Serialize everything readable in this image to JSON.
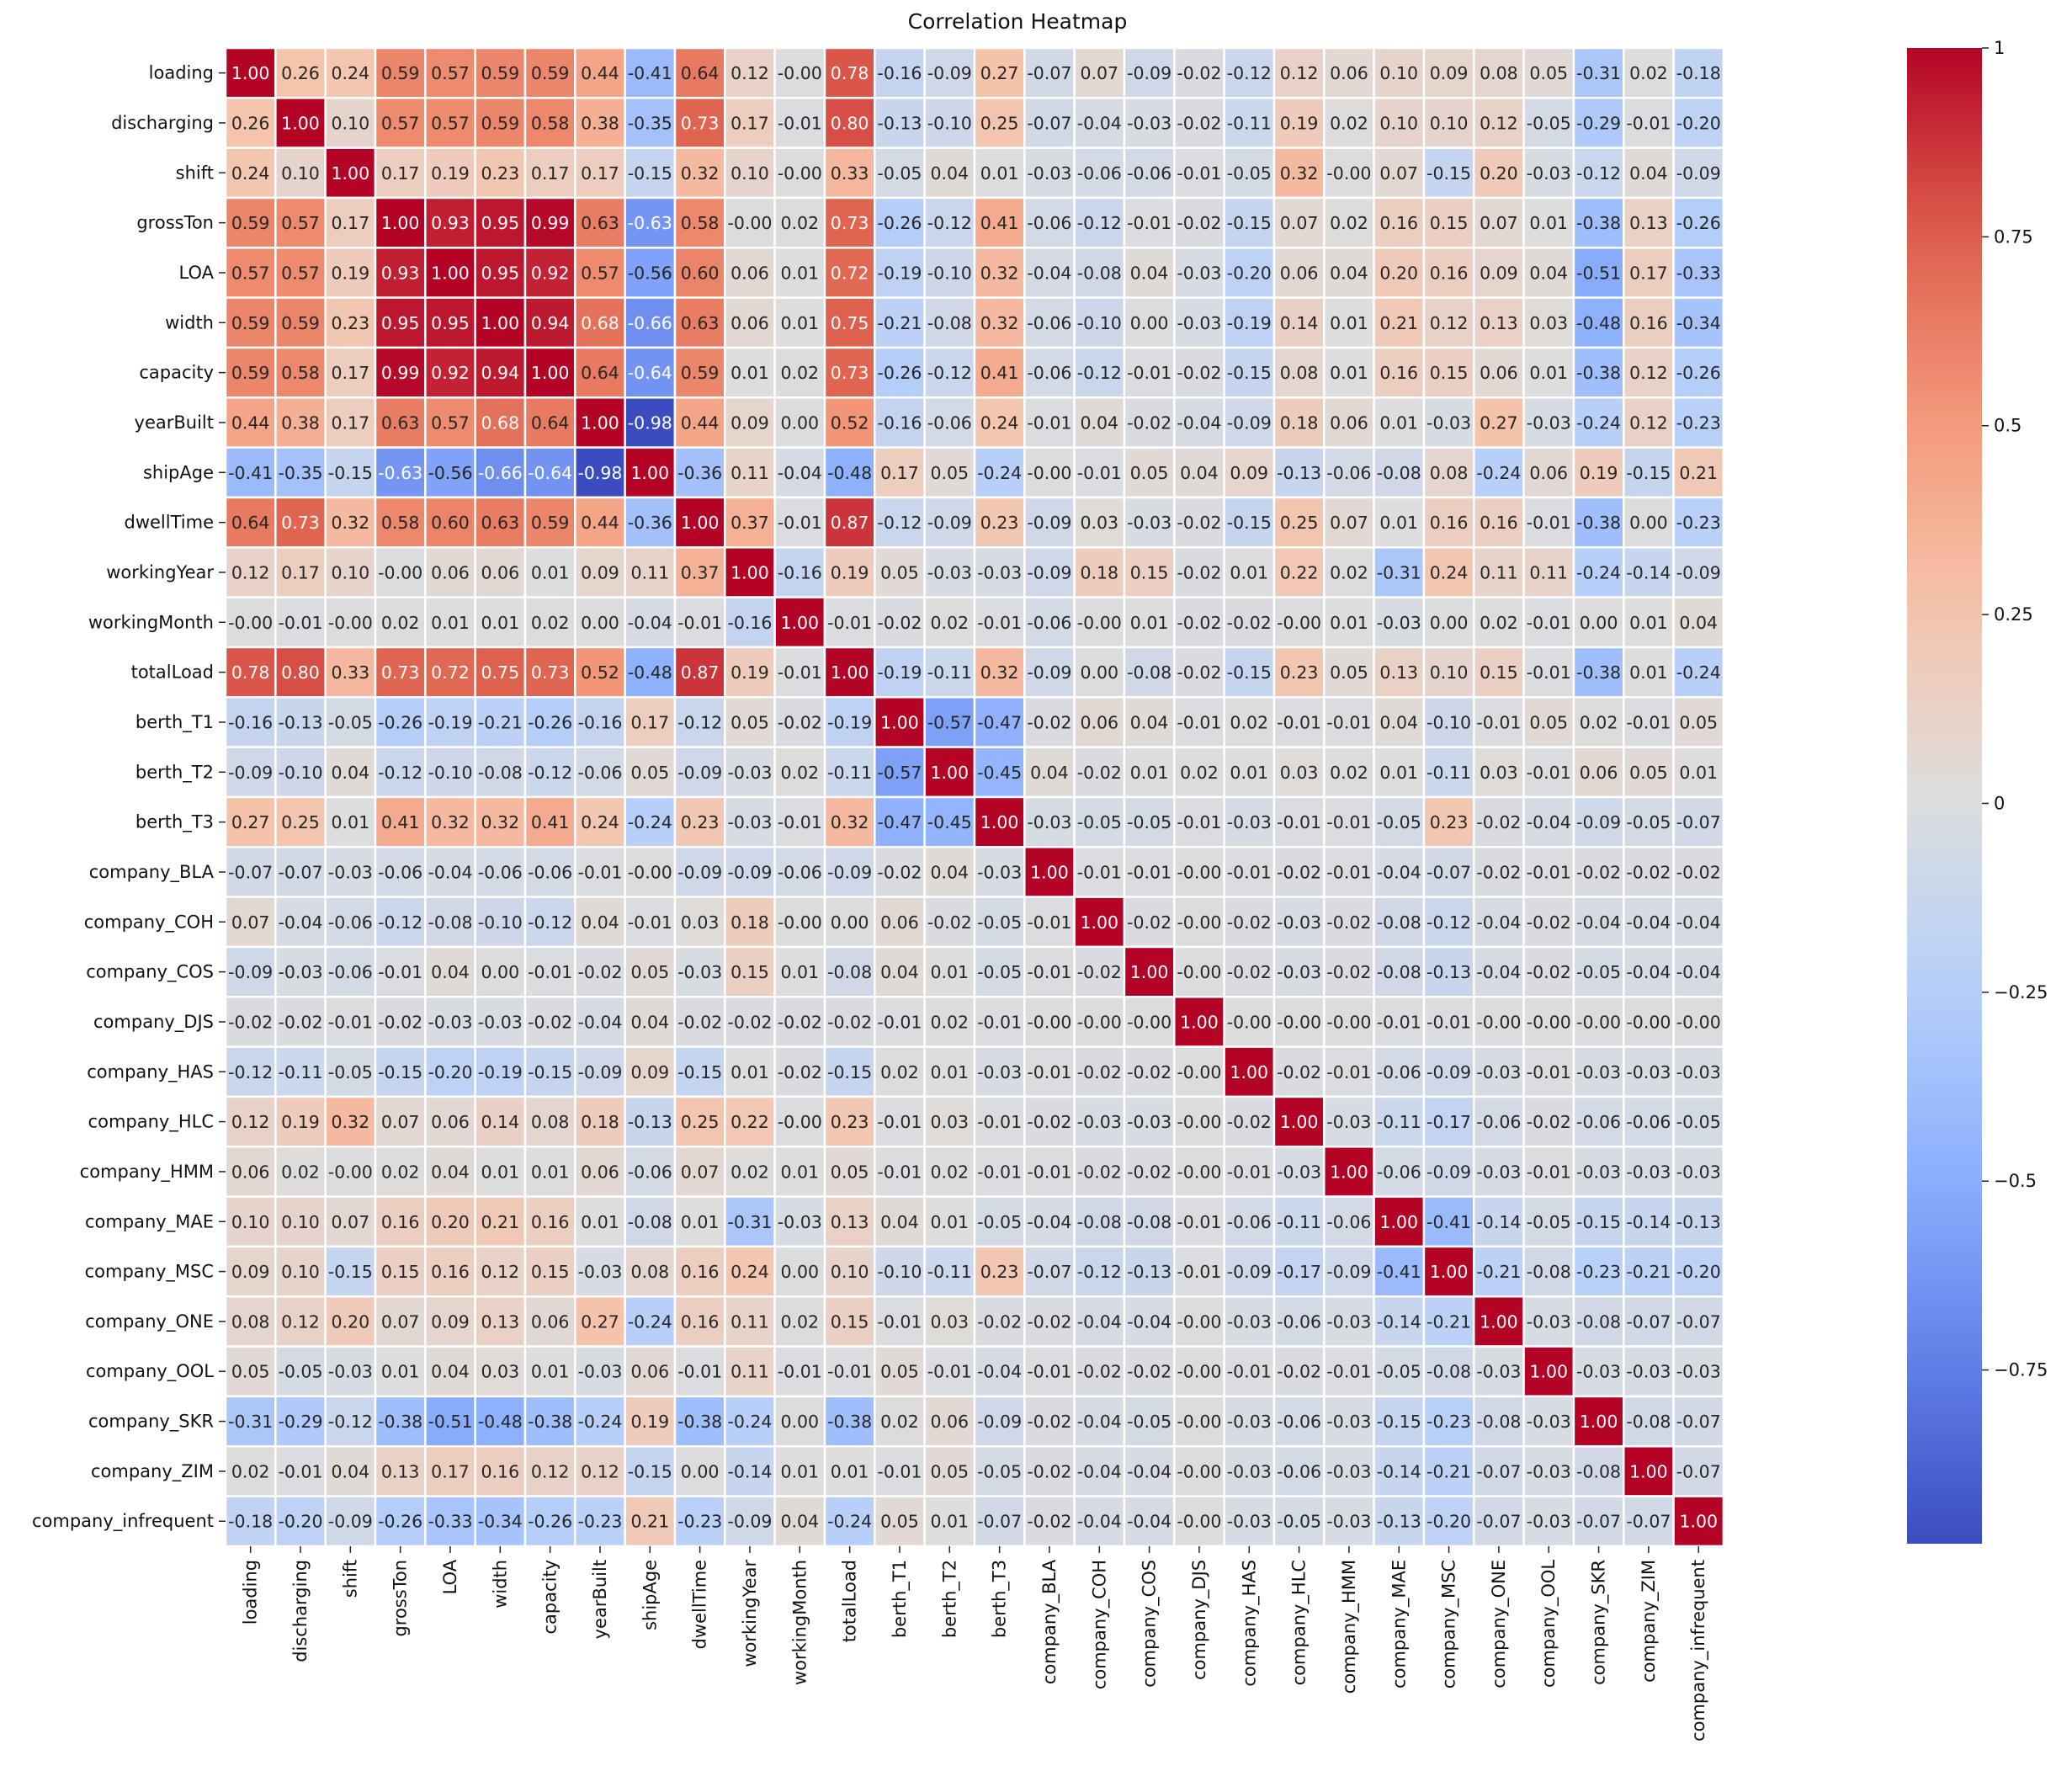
{
  "chart_data": {
    "type": "heatmap",
    "title": "Correlation Heatmap",
    "colormap": "coolwarm",
    "vmin": -0.98,
    "vmax": 1.0,
    "colorbar_ticks": [
      1,
      0.75,
      0.5,
      0.25,
      0,
      -0.25,
      -0.5,
      -0.75
    ],
    "colorbar_tick_labels": [
      "1",
      "0.75",
      "0.5",
      "0.25",
      "0",
      "−0.25",
      "−0.5",
      "−0.75"
    ],
    "variables": [
      "loading",
      "discharging",
      "shift",
      "grossTon",
      "LOA",
      "width",
      "capacity",
      "yearBuilt",
      "shipAge",
      "dwellTime",
      "workingYear",
      "workingMonth",
      "totalLoad",
      "berth_T1",
      "berth_T2",
      "berth_T3",
      "company_BLA",
      "company_COH",
      "company_COS",
      "company_DJS",
      "company_HAS",
      "company_HLC",
      "company_HMM",
      "company_MAE",
      "company_MSC",
      "company_ONE",
      "company_OOL",
      "company_SKR",
      "company_ZIM",
      "company_infrequent"
    ],
    "matrix": [
      [
        "1.00",
        "0.26",
        "0.24",
        "0.59",
        "0.57",
        "0.59",
        "0.59",
        "0.44",
        "-0.41",
        "0.64",
        "0.12",
        "-0.00",
        "0.78",
        "-0.16",
        "-0.09",
        "0.27",
        "-0.07",
        "0.07",
        "-0.09",
        "-0.02",
        "-0.12",
        "0.12",
        "0.06",
        "0.10",
        "0.09",
        "0.08",
        "0.05",
        "-0.31",
        "0.02",
        "-0.18"
      ],
      [
        "0.26",
        "1.00",
        "0.10",
        "0.57",
        "0.57",
        "0.59",
        "0.58",
        "0.38",
        "-0.35",
        "0.73",
        "0.17",
        "-0.01",
        "0.80",
        "-0.13",
        "-0.10",
        "0.25",
        "-0.07",
        "-0.04",
        "-0.03",
        "-0.02",
        "-0.11",
        "0.19",
        "0.02",
        "0.10",
        "0.10",
        "0.12",
        "-0.05",
        "-0.29",
        "-0.01",
        "-0.20"
      ],
      [
        "0.24",
        "0.10",
        "1.00",
        "0.17",
        "0.19",
        "0.23",
        "0.17",
        "0.17",
        "-0.15",
        "0.32",
        "0.10",
        "-0.00",
        "0.33",
        "-0.05",
        "0.04",
        "0.01",
        "-0.03",
        "-0.06",
        "-0.06",
        "-0.01",
        "-0.05",
        "0.32",
        "-0.00",
        "0.07",
        "-0.15",
        "0.20",
        "-0.03",
        "-0.12",
        "0.04",
        "-0.09"
      ],
      [
        "0.59",
        "0.57",
        "0.17",
        "1.00",
        "0.93",
        "0.95",
        "0.99",
        "0.63",
        "-0.63",
        "0.58",
        "-0.00",
        "0.02",
        "0.73",
        "-0.26",
        "-0.12",
        "0.41",
        "-0.06",
        "-0.12",
        "-0.01",
        "-0.02",
        "-0.15",
        "0.07",
        "0.02",
        "0.16",
        "0.15",
        "0.07",
        "0.01",
        "-0.38",
        "0.13",
        "-0.26"
      ],
      [
        "0.57",
        "0.57",
        "0.19",
        "0.93",
        "1.00",
        "0.95",
        "0.92",
        "0.57",
        "-0.56",
        "0.60",
        "0.06",
        "0.01",
        "0.72",
        "-0.19",
        "-0.10",
        "0.32",
        "-0.04",
        "-0.08",
        "0.04",
        "-0.03",
        "-0.20",
        "0.06",
        "0.04",
        "0.20",
        "0.16",
        "0.09",
        "0.04",
        "-0.51",
        "0.17",
        "-0.33"
      ],
      [
        "0.59",
        "0.59",
        "0.23",
        "0.95",
        "0.95",
        "1.00",
        "0.94",
        "0.68",
        "-0.66",
        "0.63",
        "0.06",
        "0.01",
        "0.75",
        "-0.21",
        "-0.08",
        "0.32",
        "-0.06",
        "-0.10",
        "0.00",
        "-0.03",
        "-0.19",
        "0.14",
        "0.01",
        "0.21",
        "0.12",
        "0.13",
        "0.03",
        "-0.48",
        "0.16",
        "-0.34"
      ],
      [
        "0.59",
        "0.58",
        "0.17",
        "0.99",
        "0.92",
        "0.94",
        "1.00",
        "0.64",
        "-0.64",
        "0.59",
        "0.01",
        "0.02",
        "0.73",
        "-0.26",
        "-0.12",
        "0.41",
        "-0.06",
        "-0.12",
        "-0.01",
        "-0.02",
        "-0.15",
        "0.08",
        "0.01",
        "0.16",
        "0.15",
        "0.06",
        "0.01",
        "-0.38",
        "0.12",
        "-0.26"
      ],
      [
        "0.44",
        "0.38",
        "0.17",
        "0.63",
        "0.57",
        "0.68",
        "0.64",
        "1.00",
        "-0.98",
        "0.44",
        "0.09",
        "0.00",
        "0.52",
        "-0.16",
        "-0.06",
        "0.24",
        "-0.01",
        "0.04",
        "-0.02",
        "-0.04",
        "-0.09",
        "0.18",
        "0.06",
        "0.01",
        "-0.03",
        "0.27",
        "-0.03",
        "-0.24",
        "0.12",
        "-0.23"
      ],
      [
        "-0.41",
        "-0.35",
        "-0.15",
        "-0.63",
        "-0.56",
        "-0.66",
        "-0.64",
        "-0.98",
        "1.00",
        "-0.36",
        "0.11",
        "-0.04",
        "-0.48",
        "0.17",
        "0.05",
        "-0.24",
        "-0.00",
        "-0.01",
        "0.05",
        "0.04",
        "0.09",
        "-0.13",
        "-0.06",
        "-0.08",
        "0.08",
        "-0.24",
        "0.06",
        "0.19",
        "-0.15",
        "0.21"
      ],
      [
        "0.64",
        "0.73",
        "0.32",
        "0.58",
        "0.60",
        "0.63",
        "0.59",
        "0.44",
        "-0.36",
        "1.00",
        "0.37",
        "-0.01",
        "0.87",
        "-0.12",
        "-0.09",
        "0.23",
        "-0.09",
        "0.03",
        "-0.03",
        "-0.02",
        "-0.15",
        "0.25",
        "0.07",
        "0.01",
        "0.16",
        "0.16",
        "-0.01",
        "-0.38",
        "0.00",
        "-0.23"
      ],
      [
        "0.12",
        "0.17",
        "0.10",
        "-0.00",
        "0.06",
        "0.06",
        "0.01",
        "0.09",
        "0.11",
        "0.37",
        "1.00",
        "-0.16",
        "0.19",
        "0.05",
        "-0.03",
        "-0.03",
        "-0.09",
        "0.18",
        "0.15",
        "-0.02",
        "0.01",
        "0.22",
        "0.02",
        "-0.31",
        "0.24",
        "0.11",
        "0.11",
        "-0.24",
        "-0.14",
        "-0.09"
      ],
      [
        "-0.00",
        "-0.01",
        "-0.00",
        "0.02",
        "0.01",
        "0.01",
        "0.02",
        "0.00",
        "-0.04",
        "-0.01",
        "-0.16",
        "1.00",
        "-0.01",
        "-0.02",
        "0.02",
        "-0.01",
        "-0.06",
        "-0.00",
        "0.01",
        "-0.02",
        "-0.02",
        "-0.00",
        "0.01",
        "-0.03",
        "0.00",
        "0.02",
        "-0.01",
        "0.00",
        "0.01",
        "0.04"
      ],
      [
        "0.78",
        "0.80",
        "0.33",
        "0.73",
        "0.72",
        "0.75",
        "0.73",
        "0.52",
        "-0.48",
        "0.87",
        "0.19",
        "-0.01",
        "1.00",
        "-0.19",
        "-0.11",
        "0.32",
        "-0.09",
        "0.00",
        "-0.08",
        "-0.02",
        "-0.15",
        "0.23",
        "0.05",
        "0.13",
        "0.10",
        "0.15",
        "-0.01",
        "-0.38",
        "0.01",
        "-0.24"
      ],
      [
        "-0.16",
        "-0.13",
        "-0.05",
        "-0.26",
        "-0.19",
        "-0.21",
        "-0.26",
        "-0.16",
        "0.17",
        "-0.12",
        "0.05",
        "-0.02",
        "-0.19",
        "1.00",
        "-0.57",
        "-0.47",
        "-0.02",
        "0.06",
        "0.04",
        "-0.01",
        "0.02",
        "-0.01",
        "-0.01",
        "0.04",
        "-0.10",
        "-0.01",
        "0.05",
        "0.02",
        "-0.01",
        "0.05"
      ],
      [
        "-0.09",
        "-0.10",
        "0.04",
        "-0.12",
        "-0.10",
        "-0.08",
        "-0.12",
        "-0.06",
        "0.05",
        "-0.09",
        "-0.03",
        "0.02",
        "-0.11",
        "-0.57",
        "1.00",
        "-0.45",
        "0.04",
        "-0.02",
        "0.01",
        "0.02",
        "0.01",
        "0.03",
        "0.02",
        "0.01",
        "-0.11",
        "0.03",
        "-0.01",
        "0.06",
        "0.05",
        "0.01"
      ],
      [
        "0.27",
        "0.25",
        "0.01",
        "0.41",
        "0.32",
        "0.32",
        "0.41",
        "0.24",
        "-0.24",
        "0.23",
        "-0.03",
        "-0.01",
        "0.32",
        "-0.47",
        "-0.45",
        "1.00",
        "-0.03",
        "-0.05",
        "-0.05",
        "-0.01",
        "-0.03",
        "-0.01",
        "-0.01",
        "-0.05",
        "0.23",
        "-0.02",
        "-0.04",
        "-0.09",
        "-0.05",
        "-0.07"
      ],
      [
        "-0.07",
        "-0.07",
        "-0.03",
        "-0.06",
        "-0.04",
        "-0.06",
        "-0.06",
        "-0.01",
        "-0.00",
        "-0.09",
        "-0.09",
        "-0.06",
        "-0.09",
        "-0.02",
        "0.04",
        "-0.03",
        "1.00",
        "-0.01",
        "-0.01",
        "-0.00",
        "-0.01",
        "-0.02",
        "-0.01",
        "-0.04",
        "-0.07",
        "-0.02",
        "-0.01",
        "-0.02",
        "-0.02",
        "-0.02"
      ],
      [
        "0.07",
        "-0.04",
        "-0.06",
        "-0.12",
        "-0.08",
        "-0.10",
        "-0.12",
        "0.04",
        "-0.01",
        "0.03",
        "0.18",
        "-0.00",
        "0.00",
        "0.06",
        "-0.02",
        "-0.05",
        "-0.01",
        "1.00",
        "-0.02",
        "-0.00",
        "-0.02",
        "-0.03",
        "-0.02",
        "-0.08",
        "-0.12",
        "-0.04",
        "-0.02",
        "-0.04",
        "-0.04",
        "-0.04"
      ],
      [
        "-0.09",
        "-0.03",
        "-0.06",
        "-0.01",
        "0.04",
        "0.00",
        "-0.01",
        "-0.02",
        "0.05",
        "-0.03",
        "0.15",
        "0.01",
        "-0.08",
        "0.04",
        "0.01",
        "-0.05",
        "-0.01",
        "-0.02",
        "1.00",
        "-0.00",
        "-0.02",
        "-0.03",
        "-0.02",
        "-0.08",
        "-0.13",
        "-0.04",
        "-0.02",
        "-0.05",
        "-0.04",
        "-0.04"
      ],
      [
        "-0.02",
        "-0.02",
        "-0.01",
        "-0.02",
        "-0.03",
        "-0.03",
        "-0.02",
        "-0.04",
        "0.04",
        "-0.02",
        "-0.02",
        "-0.02",
        "-0.02",
        "-0.01",
        "0.02",
        "-0.01",
        "-0.00",
        "-0.00",
        "-0.00",
        "1.00",
        "-0.00",
        "-0.00",
        "-0.00",
        "-0.01",
        "-0.01",
        "-0.00",
        "-0.00",
        "-0.00",
        "-0.00",
        "-0.00"
      ],
      [
        "-0.12",
        "-0.11",
        "-0.05",
        "-0.15",
        "-0.20",
        "-0.19",
        "-0.15",
        "-0.09",
        "0.09",
        "-0.15",
        "0.01",
        "-0.02",
        "-0.15",
        "0.02",
        "0.01",
        "-0.03",
        "-0.01",
        "-0.02",
        "-0.02",
        "-0.00",
        "1.00",
        "-0.02",
        "-0.01",
        "-0.06",
        "-0.09",
        "-0.03",
        "-0.01",
        "-0.03",
        "-0.03",
        "-0.03"
      ],
      [
        "0.12",
        "0.19",
        "0.32",
        "0.07",
        "0.06",
        "0.14",
        "0.08",
        "0.18",
        "-0.13",
        "0.25",
        "0.22",
        "-0.00",
        "0.23",
        "-0.01",
        "0.03",
        "-0.01",
        "-0.02",
        "-0.03",
        "-0.03",
        "-0.00",
        "-0.02",
        "1.00",
        "-0.03",
        "-0.11",
        "-0.17",
        "-0.06",
        "-0.02",
        "-0.06",
        "-0.06",
        "-0.05"
      ],
      [
        "0.06",
        "0.02",
        "-0.00",
        "0.02",
        "0.04",
        "0.01",
        "0.01",
        "0.06",
        "-0.06",
        "0.07",
        "0.02",
        "0.01",
        "0.05",
        "-0.01",
        "0.02",
        "-0.01",
        "-0.01",
        "-0.02",
        "-0.02",
        "-0.00",
        "-0.01",
        "-0.03",
        "1.00",
        "-0.06",
        "-0.09",
        "-0.03",
        "-0.01",
        "-0.03",
        "-0.03",
        "-0.03"
      ],
      [
        "0.10",
        "0.10",
        "0.07",
        "0.16",
        "0.20",
        "0.21",
        "0.16",
        "0.01",
        "-0.08",
        "0.01",
        "-0.31",
        "-0.03",
        "0.13",
        "0.04",
        "0.01",
        "-0.05",
        "-0.04",
        "-0.08",
        "-0.08",
        "-0.01",
        "-0.06",
        "-0.11",
        "-0.06",
        "1.00",
        "-0.41",
        "-0.14",
        "-0.05",
        "-0.15",
        "-0.14",
        "-0.13"
      ],
      [
        "0.09",
        "0.10",
        "-0.15",
        "0.15",
        "0.16",
        "0.12",
        "0.15",
        "-0.03",
        "0.08",
        "0.16",
        "0.24",
        "0.00",
        "0.10",
        "-0.10",
        "-0.11",
        "0.23",
        "-0.07",
        "-0.12",
        "-0.13",
        "-0.01",
        "-0.09",
        "-0.17",
        "-0.09",
        "-0.41",
        "1.00",
        "-0.21",
        "-0.08",
        "-0.23",
        "-0.21",
        "-0.20"
      ],
      [
        "0.08",
        "0.12",
        "0.20",
        "0.07",
        "0.09",
        "0.13",
        "0.06",
        "0.27",
        "-0.24",
        "0.16",
        "0.11",
        "0.02",
        "0.15",
        "-0.01",
        "0.03",
        "-0.02",
        "-0.02",
        "-0.04",
        "-0.04",
        "-0.00",
        "-0.03",
        "-0.06",
        "-0.03",
        "-0.14",
        "-0.21",
        "1.00",
        "-0.03",
        "-0.08",
        "-0.07",
        "-0.07"
      ],
      [
        "0.05",
        "-0.05",
        "-0.03",
        "0.01",
        "0.04",
        "0.03",
        "0.01",
        "-0.03",
        "0.06",
        "-0.01",
        "0.11",
        "-0.01",
        "-0.01",
        "0.05",
        "-0.01",
        "-0.04",
        "-0.01",
        "-0.02",
        "-0.02",
        "-0.00",
        "-0.01",
        "-0.02",
        "-0.01",
        "-0.05",
        "-0.08",
        "-0.03",
        "1.00",
        "-0.03",
        "-0.03",
        "-0.03"
      ],
      [
        "-0.31",
        "-0.29",
        "-0.12",
        "-0.38",
        "-0.51",
        "-0.48",
        "-0.38",
        "-0.24",
        "0.19",
        "-0.38",
        "-0.24",
        "0.00",
        "-0.38",
        "0.02",
        "0.06",
        "-0.09",
        "-0.02",
        "-0.04",
        "-0.05",
        "-0.00",
        "-0.03",
        "-0.06",
        "-0.03",
        "-0.15",
        "-0.23",
        "-0.08",
        "-0.03",
        "1.00",
        "-0.08",
        "-0.07"
      ],
      [
        "0.02",
        "-0.01",
        "0.04",
        "0.13",
        "0.17",
        "0.16",
        "0.12",
        "0.12",
        "-0.15",
        "0.00",
        "-0.14",
        "0.01",
        "0.01",
        "-0.01",
        "0.05",
        "-0.05",
        "-0.02",
        "-0.04",
        "-0.04",
        "-0.00",
        "-0.03",
        "-0.06",
        "-0.03",
        "-0.14",
        "-0.21",
        "-0.07",
        "-0.03",
        "-0.08",
        "1.00",
        "-0.07"
      ],
      [
        "-0.18",
        "-0.20",
        "-0.09",
        "-0.26",
        "-0.33",
        "-0.34",
        "-0.26",
        "-0.23",
        "0.21",
        "-0.23",
        "-0.09",
        "0.04",
        "-0.24",
        "0.05",
        "0.01",
        "-0.07",
        "-0.02",
        "-0.04",
        "-0.04",
        "-0.00",
        "-0.03",
        "-0.05",
        "-0.03",
        "-0.13",
        "-0.20",
        "-0.07",
        "-0.03",
        "-0.07",
        "-0.07",
        "1.00"
      ]
    ]
  }
}
